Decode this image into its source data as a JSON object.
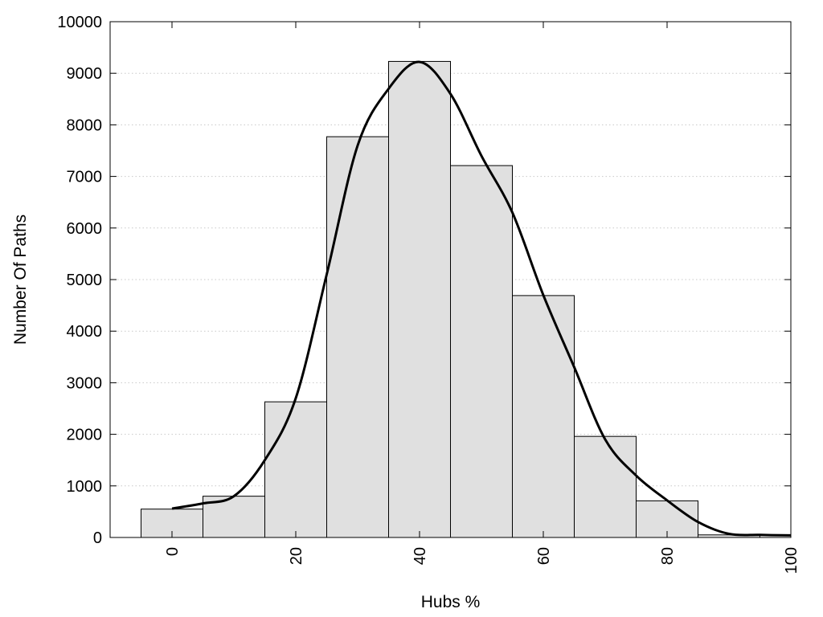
{
  "chart_data": {
    "type": "bar",
    "title": "",
    "xlabel": "Hubs %",
    "ylabel": "Number Of Paths",
    "xlim": [
      -10,
      100
    ],
    "ylim": [
      0,
      10000
    ],
    "x_ticks": [
      "0",
      "20",
      "40",
      "60",
      "80",
      "100"
    ],
    "y_ticks": [
      "0",
      "1000",
      "2000",
      "3000",
      "4000",
      "5000",
      "6000",
      "7000",
      "8000",
      "9000",
      "10000"
    ],
    "grid": "horizontal dotted",
    "bin_width": 10,
    "bins": [
      {
        "center": 0,
        "value": 550
      },
      {
        "center": 10,
        "value": 800
      },
      {
        "center": 20,
        "value": 2630
      },
      {
        "center": 30,
        "value": 7770
      },
      {
        "center": 40,
        "value": 9230
      },
      {
        "center": 50,
        "value": 7210
      },
      {
        "center": 60,
        "value": 4690
      },
      {
        "center": 70,
        "value": 1960
      },
      {
        "center": 80,
        "value": 710
      },
      {
        "center": 90,
        "value": 50
      }
    ],
    "curve": {
      "x": [
        0,
        5,
        10,
        15,
        20,
        25,
        30,
        35,
        40,
        45,
        50,
        55,
        60,
        65,
        70,
        75,
        80,
        85,
        90,
        95,
        100
      ],
      "y": [
        560,
        660,
        800,
        1500,
        2700,
        5100,
        7600,
        8700,
        9220,
        8600,
        7400,
        6300,
        4700,
        3300,
        1900,
        1200,
        720,
        300,
        70,
        50,
        40
      ]
    },
    "colors": {
      "bar_fill": "#e0e0e0",
      "bar_stroke": "#000000",
      "curve": "#000000",
      "grid": "#c8c8c8"
    }
  }
}
